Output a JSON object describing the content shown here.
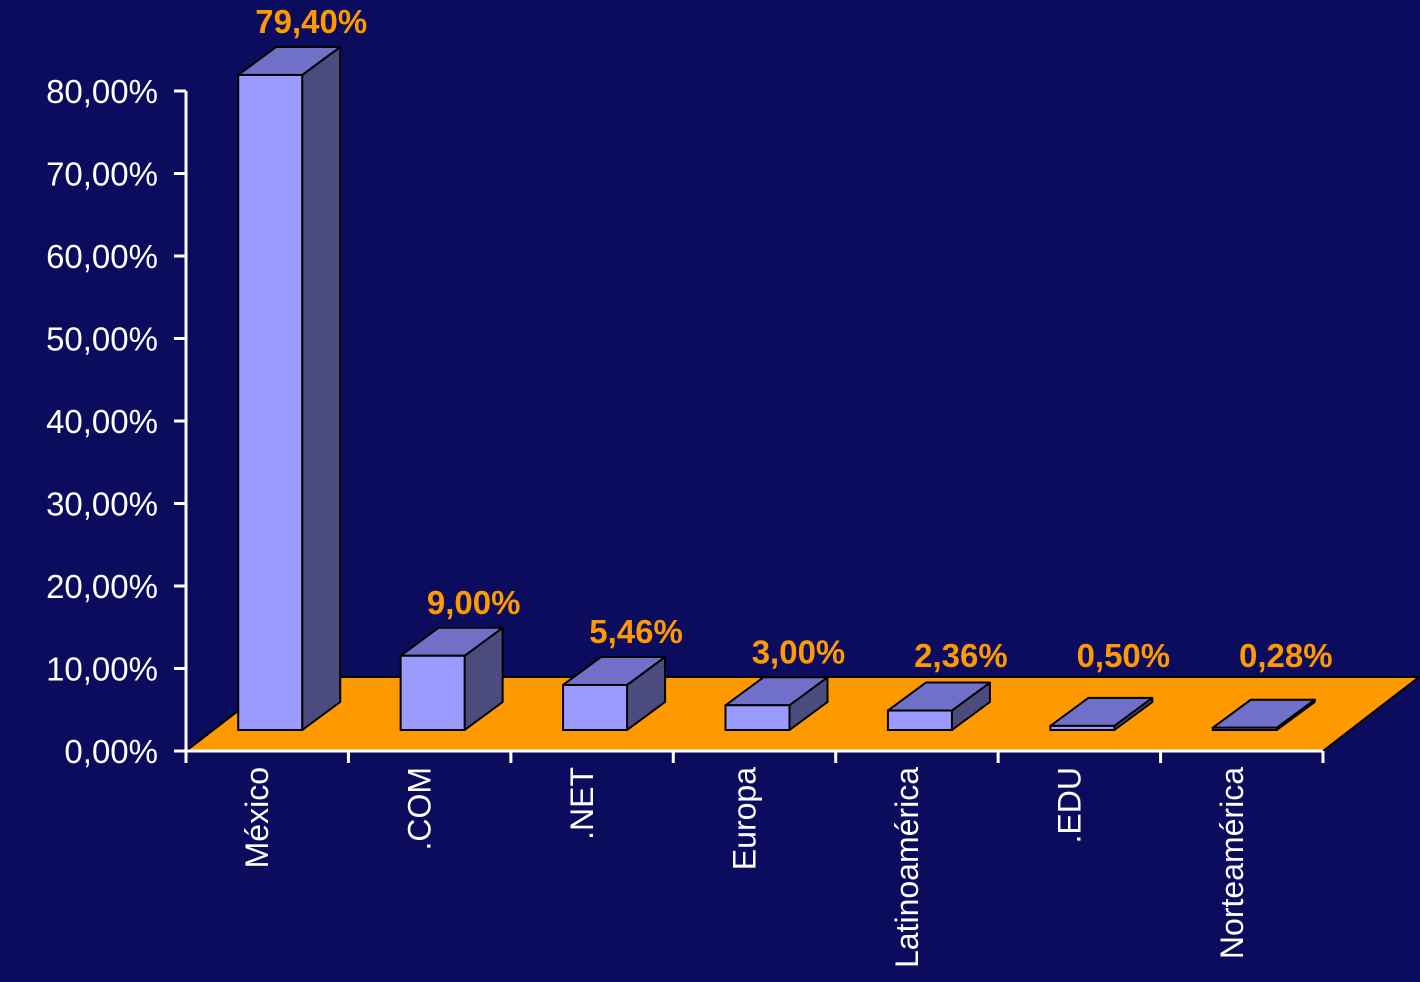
{
  "colors": {
    "background": "#0c0c5e",
    "floor": "#ff9900",
    "bar_front": "#9b9bff",
    "bar_top": "#7070c8",
    "bar_side": "#4b4b7e",
    "data_label": "#ff9900",
    "axis": "#ffffff"
  },
  "chart_data": {
    "type": "bar",
    "style": "3d-column",
    "categories": [
      "México",
      ".COM",
      ".NET",
      "Europa",
      "Latinoamérica",
      ".EDU",
      "Norteamérica"
    ],
    "values": [
      79.4,
      9.0,
      5.46,
      3.0,
      2.36,
      0.5,
      0.28
    ],
    "data_labels": [
      "79,40%",
      "9,00%",
      "5,46%",
      "3,00%",
      "2,36%",
      "0,50%",
      "0,28%"
    ],
    "y_ticks": [
      0,
      10,
      20,
      30,
      40,
      50,
      60,
      70,
      80
    ],
    "y_tick_labels": [
      "0,00%",
      "10,00%",
      "20,00%",
      "30,00%",
      "40,00%",
      "50,00%",
      "60,00%",
      "70,00%",
      "80,00%"
    ],
    "ylim": [
      0,
      80
    ],
    "grid": false,
    "legend": "none",
    "title": "",
    "xlabel": "",
    "ylabel": ""
  }
}
